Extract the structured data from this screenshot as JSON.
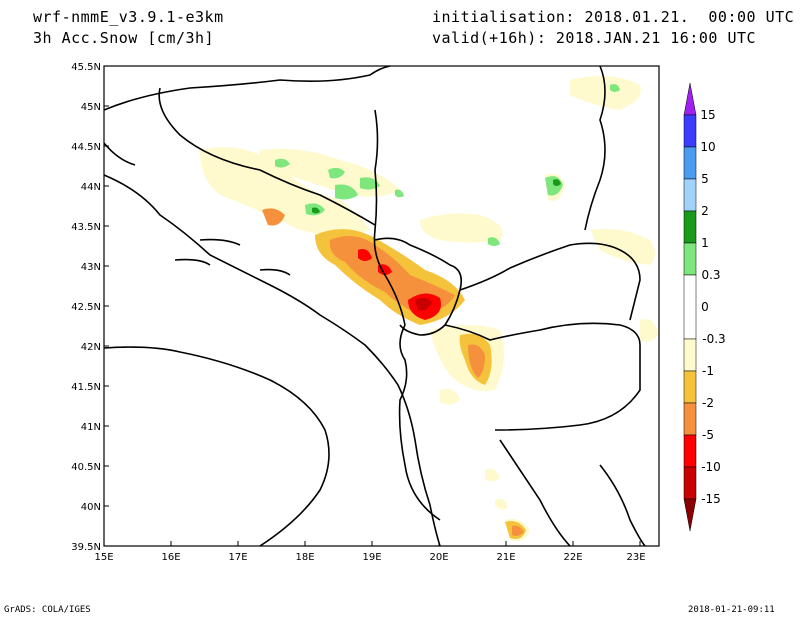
{
  "header": {
    "model": "wrf-nmmE_v3.9.1-e3km",
    "field": "3h Acc.Snow [cm/3h]",
    "init": "initialisation: 2018.01.21.  00:00 UTC",
    "valid": "valid(+16h): 2018.JAN.21 16:00 UTC"
  },
  "footer": {
    "left": "GrADS: COLA/IGES",
    "right": "2018-01-21-09:11"
  },
  "axes": {
    "lon_labels": [
      "15E",
      "16E",
      "17E",
      "18E",
      "19E",
      "20E",
      "21E",
      "22E",
      "23E"
    ],
    "lat_labels": [
      "45.5N",
      "45N",
      "44.5N",
      "44N",
      "43.5N",
      "43N",
      "42.5N",
      "42N",
      "41.5N",
      "41N",
      "40.5N",
      "40N",
      "39.5N"
    ]
  },
  "colorbar": {
    "labels": [
      "15",
      "10",
      "5",
      "2",
      "1",
      "0.3",
      "0",
      "-0.3",
      "-1",
      "-2",
      "-5",
      "-10",
      "-15"
    ],
    "colors": [
      "#a020f0",
      "#3c3cff",
      "#4b9bf0",
      "#a0d2fa",
      "#1a9a1a",
      "#7de67d",
      "#ffffff",
      "#fffacd",
      "#f5c23c",
      "#f5913c",
      "#ff0000",
      "#c80000",
      "#8b0000"
    ]
  }
}
